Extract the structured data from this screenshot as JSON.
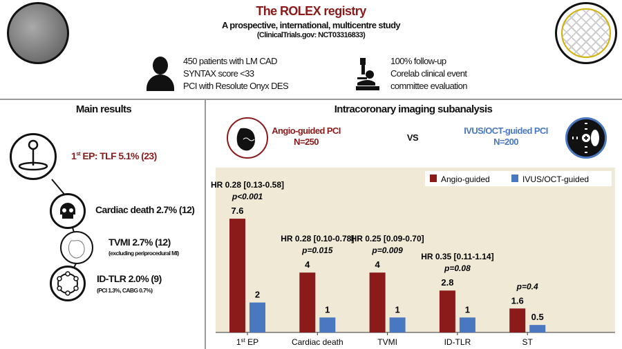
{
  "header": {
    "title": "The ROLEX registry",
    "subtitle": "A prospective, international, multicentre study",
    "registration": "(ClinicalTrials.gov: NCT03316833)"
  },
  "population": {
    "icon": "person-icon",
    "lines": [
      "450 patients with LM CAD",
      "SYNTAX score <33",
      "PCI with Resolute Onyx DES"
    ]
  },
  "followup": {
    "icon": "microscope-icon",
    "lines": [
      "100% follow-up",
      "Corelab clinical event",
      "committee evaluation"
    ]
  },
  "main_results": {
    "title": "Main results",
    "primary": {
      "sup": "st",
      "pre": "1",
      "text": " EP: TLF 5.1% (23)"
    },
    "items": [
      {
        "label": "Cardiac death 2.7% (12)",
        "note": ""
      },
      {
        "label": "TVMI 2.7% (12)",
        "note": "(excluding periprocedural MI)"
      },
      {
        "label": "ID-TLR 2.0% (9)",
        "note": "(PCI 1.3%, CABG 0.7%)"
      }
    ]
  },
  "subanalysis": {
    "title": "Intracoronary imaging subanalysis",
    "angio": {
      "label": "Angio-guided PCI",
      "n": "N=250"
    },
    "vs": "VS",
    "ivus": {
      "label": "IVUS/OCT-guided PCI",
      "n": "N=200"
    }
  },
  "colors": {
    "angio": "#8b1a1a",
    "ivus": "#4a78c0",
    "panel": "#efe9d6"
  },
  "chart_data": {
    "type": "bar",
    "categories": [
      "1st EP",
      "Cardiac death",
      "TVMI",
      "ID-TLR",
      "ST"
    ],
    "series": [
      {
        "name": "Angio-guided",
        "values": [
          7.6,
          4,
          4,
          2.8,
          1.6
        ]
      },
      {
        "name": "IVUS/OCT-guided",
        "values": [
          2,
          1,
          1,
          1,
          0.5
        ]
      }
    ],
    "annotations": [
      {
        "hr": "HR 0.28 [0.13-0.58]",
        "p": "p<0.001"
      },
      {
        "hr": "HR 0.28 [0.10-0.78]",
        "p": "p=0.015"
      },
      {
        "hr": "HR 0.25 [0.09-0.70]",
        "p": "p=0.009"
      },
      {
        "hr": "HR 0.35 [0.11-1.14]",
        "p": "p=0.08"
      },
      {
        "hr": "",
        "p": "p=0.4"
      }
    ],
    "legend": "top-right",
    "ylim": [
      0,
      8
    ],
    "grid": false,
    "xlabel": "",
    "ylabel": ""
  }
}
